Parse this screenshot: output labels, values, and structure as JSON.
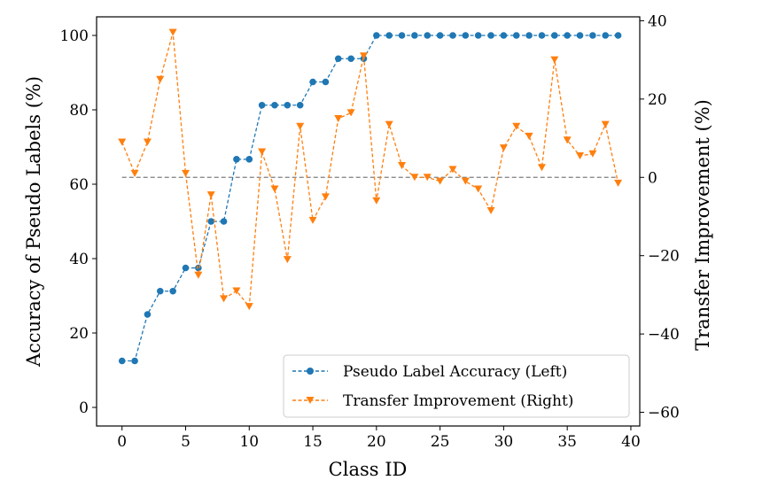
{
  "chart_data": {
    "type": "line",
    "title": "",
    "xlabel": "Class ID",
    "ylabel_left": "Accuracy of Pseudo Labels (%)",
    "ylabel_right": "Transfer Improvement (%)",
    "xlim": [
      -2,
      40.7
    ],
    "ylim_left": [
      -5,
      105
    ],
    "ylim_right": [
      -63.5,
      41
    ],
    "x_ticks": [
      0,
      5,
      10,
      15,
      20,
      25,
      30,
      35,
      40
    ],
    "y_ticks_left": [
      0,
      20,
      40,
      60,
      80,
      100
    ],
    "y_ticks_right": [
      -60,
      -40,
      -20,
      0,
      20,
      40
    ],
    "x_tick_labels": [
      "0",
      "5",
      "10",
      "15",
      "20",
      "25",
      "30",
      "35",
      "40"
    ],
    "y_tick_labels_left": [
      "0",
      "20",
      "40",
      "60",
      "80",
      "100"
    ],
    "y_tick_labels_right": [
      "−60",
      "−40",
      "−20",
      "0",
      "20",
      "40"
    ],
    "reference_line": {
      "axis": "right",
      "y": 0,
      "color": "#7f7f7f",
      "style": "dashed"
    },
    "legend_position": "lower-right",
    "grid": false,
    "x": [
      0,
      1,
      2,
      3,
      4,
      5,
      6,
      7,
      8,
      9,
      10,
      11,
      12,
      13,
      14,
      15,
      16,
      17,
      18,
      19,
      20,
      21,
      22,
      23,
      24,
      25,
      26,
      27,
      28,
      29,
      30,
      31,
      32,
      33,
      34,
      35,
      36,
      37,
      38,
      39
    ],
    "series": [
      {
        "name": "Pseudo Label Accuracy (Left)",
        "axis": "left",
        "color": "#1f77b4",
        "marker": "circle",
        "line_style": "dashed",
        "values": [
          12.5,
          12.5,
          25,
          31.25,
          31.25,
          37.5,
          37.5,
          50,
          50,
          66.7,
          66.7,
          81.25,
          81.25,
          81.25,
          81.25,
          87.5,
          87.5,
          93.75,
          93.75,
          93.75,
          100,
          100,
          100,
          100,
          100,
          100,
          100,
          100,
          100,
          100,
          100,
          100,
          100,
          100,
          100,
          100,
          100,
          100,
          100,
          100
        ]
      },
      {
        "name": "Transfer Improvement (Right)",
        "axis": "right",
        "color": "#ff7f0e",
        "marker": "triangle-down",
        "line_style": "dashed",
        "values": [
          9,
          1,
          9,
          25,
          37,
          1,
          -25,
          -4.5,
          -31,
          -29,
          -33,
          6.5,
          -3,
          -21,
          13,
          -11,
          -5,
          15,
          16.5,
          31,
          -6,
          13.5,
          3,
          0,
          0,
          -1,
          2,
          -1,
          -3,
          -8.5,
          7.5,
          13,
          10.5,
          2.5,
          30,
          9.5,
          5.5,
          6,
          13.5,
          -1.5
        ]
      }
    ]
  }
}
